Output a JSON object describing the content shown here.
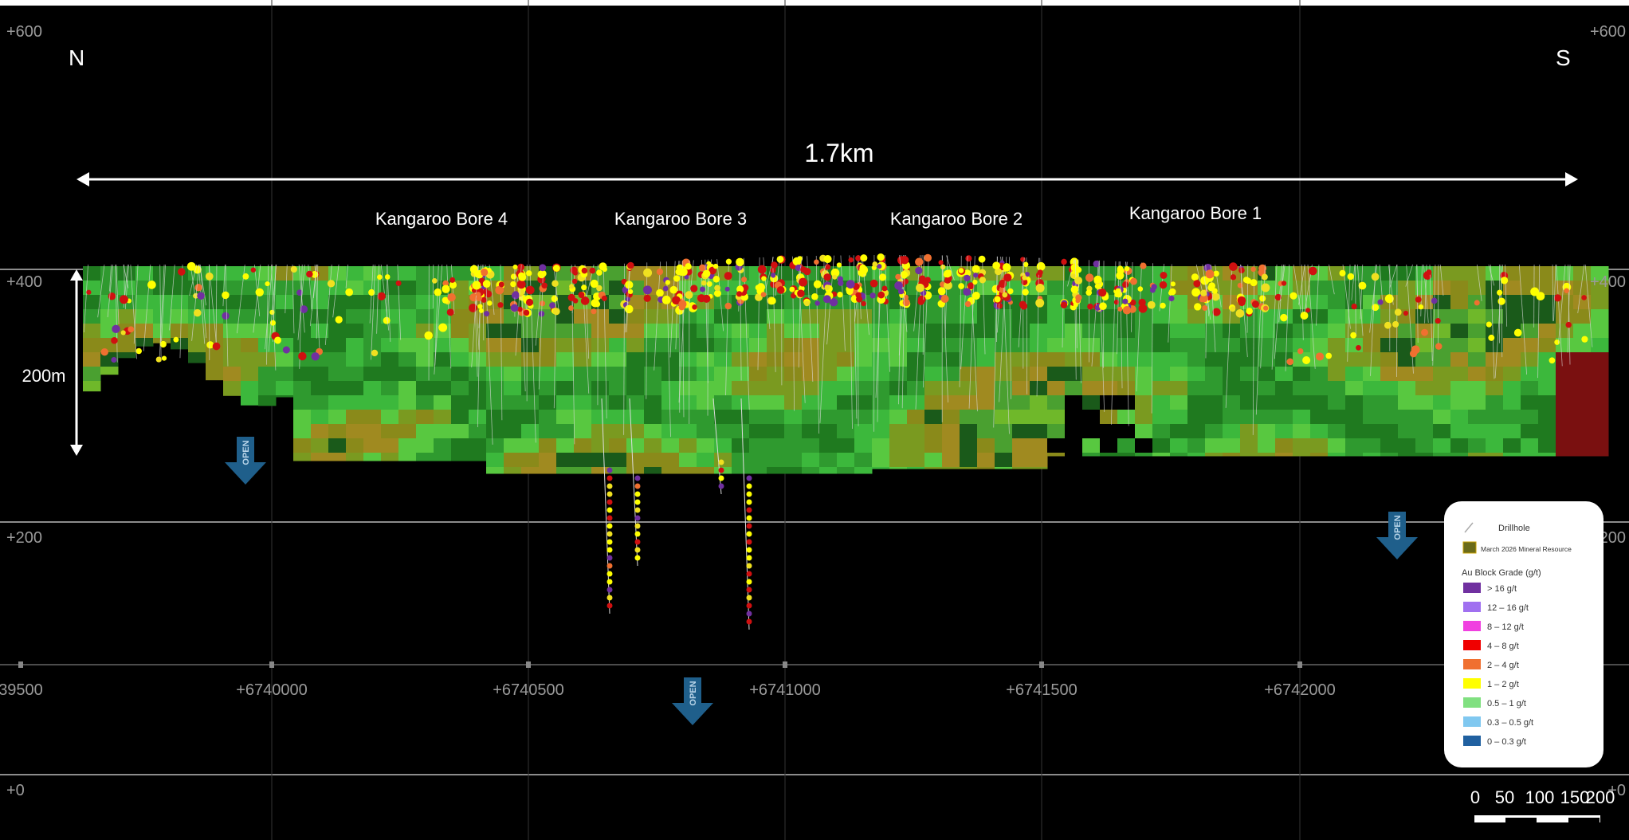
{
  "elevations": {
    "left": [
      "+600",
      "+400",
      "+200",
      "+0"
    ],
    "right": [
      "+600",
      "+400",
      "+200",
      "+0"
    ]
  },
  "compass": {
    "north": "N",
    "south": "S"
  },
  "extent": "1.7km",
  "depth": "200m",
  "deposits": [
    "Kangaroo Bore 4",
    "Kangaroo Bore 3",
    "Kangaroo Bore 2",
    "Kangaroo Bore 1"
  ],
  "open_labels": [
    "OPEN",
    "OPEN",
    "OPEN"
  ],
  "eastings": [
    "39500",
    "+6740000",
    "+6740500",
    "+6741000",
    "+6741500",
    "+6742000"
  ],
  "legend": {
    "drillhole": "Drillhole",
    "resource": "March 2026 Mineral Resource",
    "grade_title": "Au Block Grade (g/t)",
    "grades": [
      {
        "label": "> 16 g/t",
        "color": "#7030a0"
      },
      {
        "label": "12 – 16 g/t",
        "color": "#a070f0"
      },
      {
        "label": "8 – 12 g/t",
        "color": "#f040e0"
      },
      {
        "label": "4 – 8 g/t",
        "color": "#f00000"
      },
      {
        "label": "2 – 4 g/t",
        "color": "#f07030"
      },
      {
        "label": "1 – 2 g/t",
        "color": "#ffff00"
      },
      {
        "label": "0.5 – 1 g/t",
        "color": "#80e080"
      },
      {
        "label": "0.3 – 0.5 g/t",
        "color": "#80c8f0"
      },
      {
        "label": "0 – 0.3 g/t",
        "color": "#2060a0"
      }
    ]
  },
  "scale_bar": [
    "0",
    "50",
    "100",
    "150",
    "200"
  ]
}
